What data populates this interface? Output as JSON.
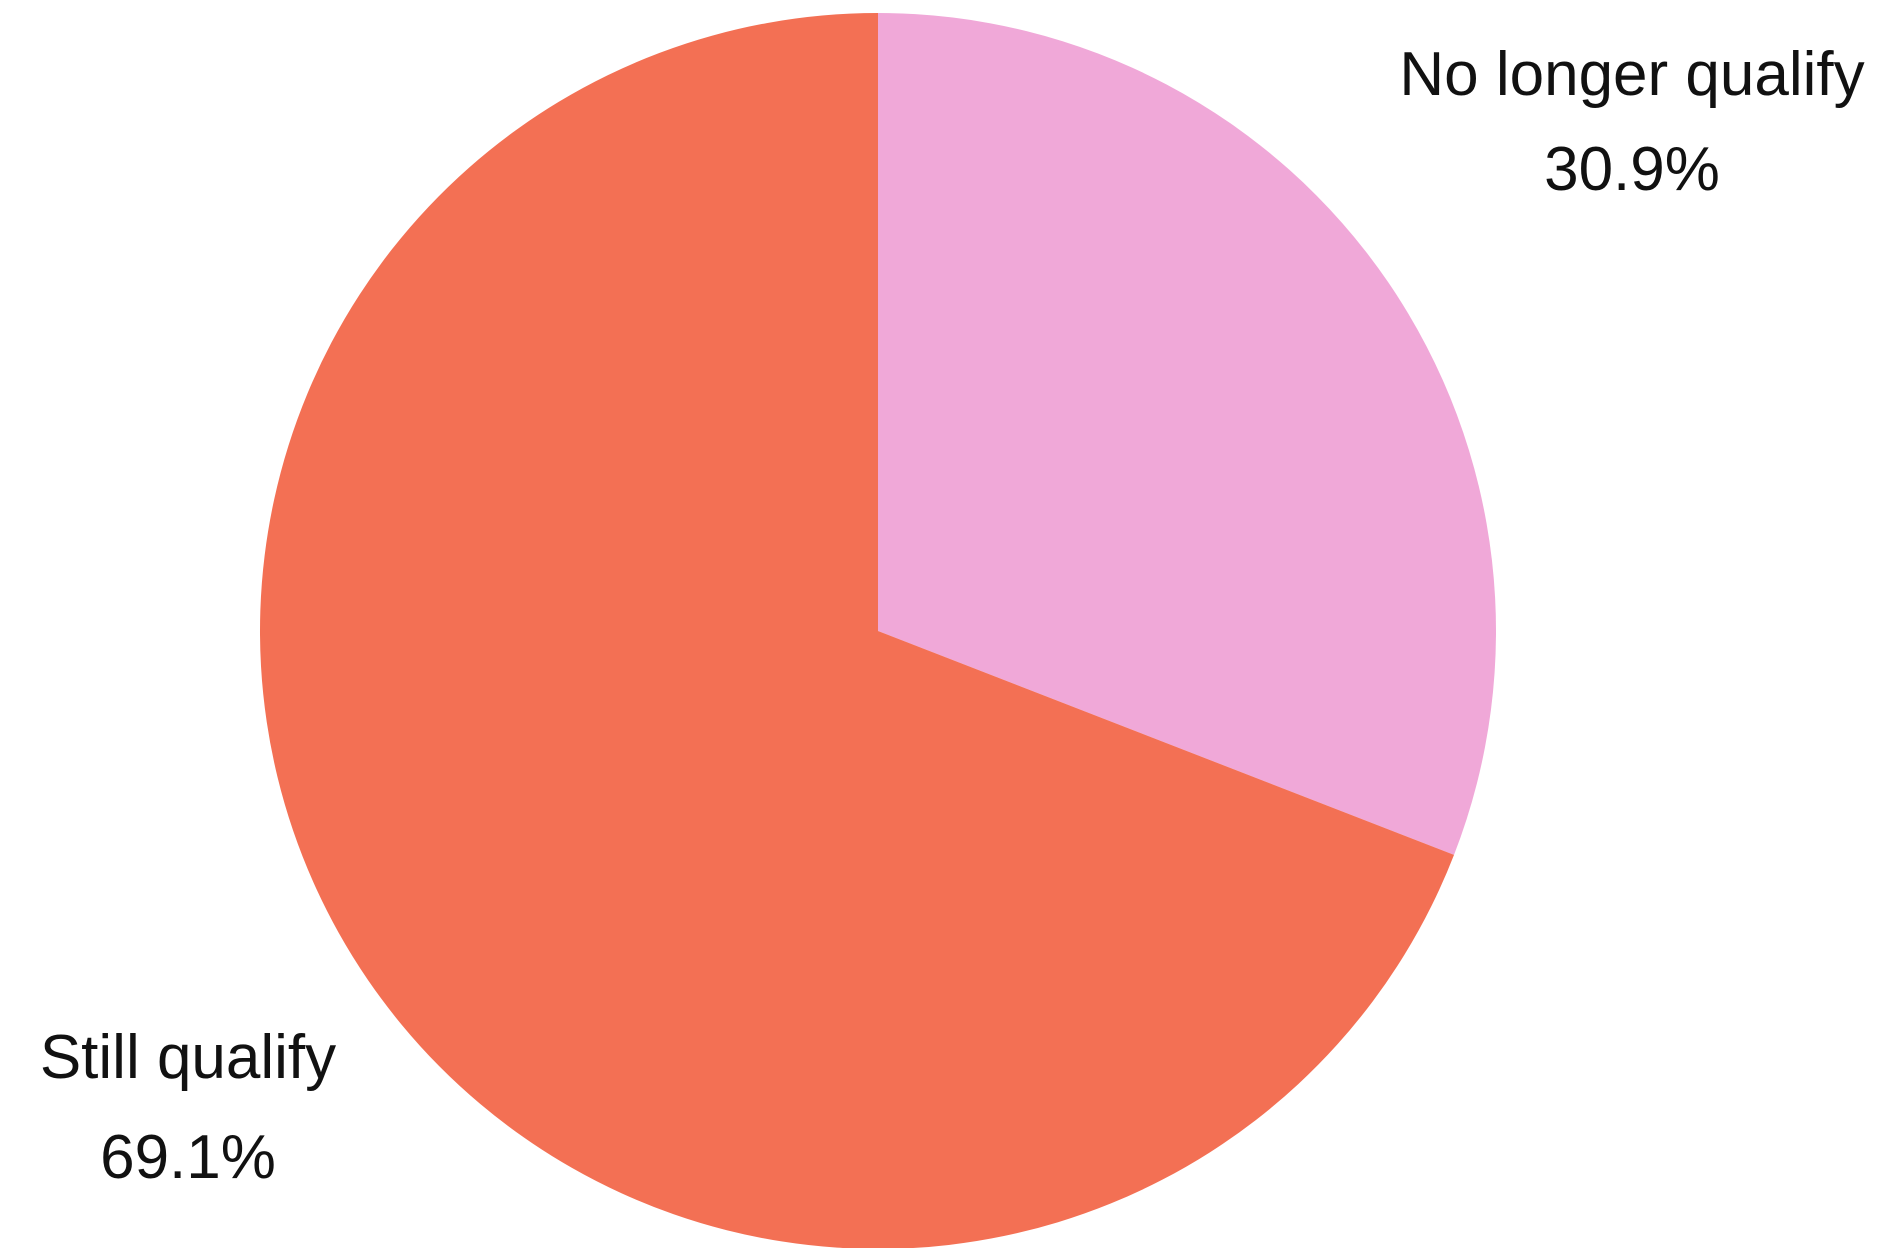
{
  "chart_data": {
    "type": "pie",
    "start_angle": "12 o'clock",
    "direction": "clockwise",
    "slices": [
      {
        "label": "No longer qualify",
        "value": 30.9,
        "value_label": "30.9%",
        "color": "#F0A8D8"
      },
      {
        "label": "Still qualify",
        "value": 69.1,
        "value_label": "69.1%",
        "color": "#F37054"
      }
    ]
  }
}
